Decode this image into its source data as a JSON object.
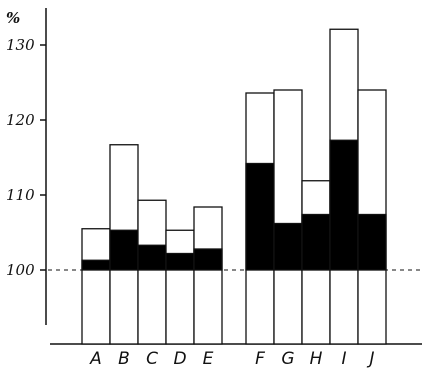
{
  "chart_data": {
    "type": "bar",
    "title": "",
    "xlabel": "",
    "ylabel": "%",
    "ylim": [
      88,
      134
    ],
    "yticks": [
      100,
      110,
      120,
      130
    ],
    "reference_line": 100,
    "groups": [
      {
        "categories": [
          "A",
          "B",
          "C",
          "D",
          "E"
        ],
        "dark_top": [
          101.3,
          105.3,
          103.3,
          102.2,
          102.8
        ],
        "total_top": [
          105.5,
          116.7,
          109.3,
          105.3,
          108.4
        ]
      },
      {
        "categories": [
          "F",
          "G",
          "H",
          "I",
          "J"
        ],
        "dark_top": [
          114.2,
          106.2,
          107.4,
          117.3,
          107.4
        ],
        "total_top": [
          123.6,
          124.0,
          111.9,
          132.1,
          124.0
        ]
      }
    ],
    "colors": {
      "dark": "#000000",
      "light": "#ffffff",
      "stroke": "#111111"
    }
  }
}
